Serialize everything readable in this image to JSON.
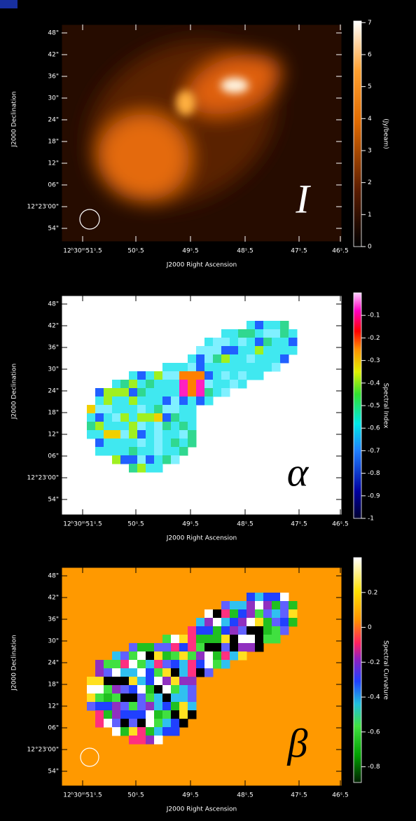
{
  "panels": [
    {
      "symbol": "I",
      "y_label": "J2000 Declination",
      "x_label": "J2000 Right Ascension",
      "x_ticks": [
        "12ʰ30ᵐ51ˢ.5",
        "50ˢ.5",
        "49ˢ.5",
        "48ˢ.5",
        "47ˢ.5",
        "46ˢ.5"
      ],
      "y_ticks": [
        "48\"",
        "42\"",
        "36\"",
        "30\"",
        "24\"",
        "18\"",
        "12\"",
        "06\"",
        "12°23'00\"",
        "54\""
      ],
      "colorbar": {
        "label": "(Jy/beam)",
        "lim": [
          0,
          7.05
        ],
        "ticks": [
          0,
          1,
          2,
          3,
          4,
          5,
          6,
          7
        ]
      }
    },
    {
      "symbol": "α",
      "y_label": "J2000 Declination",
      "x_label": "J2000 Right Ascension",
      "x_ticks": [
        "12ʰ30ᵐ51ˢ.5",
        "50ˢ.5",
        "49ˢ.5",
        "48ˢ.5",
        "47ˢ.5",
        "46ˢ.5"
      ],
      "y_ticks": [
        "48\"",
        "42\"",
        "36\"",
        "30\"",
        "24\"",
        "18\"",
        "12\"",
        "06\"",
        "12°23'00\"",
        "54\""
      ],
      "colorbar": {
        "label": "Spectral Index",
        "lim": [
          -1,
          0
        ],
        "ticks": [
          -1,
          -0.9,
          -0.8,
          -0.7,
          -0.6,
          -0.5,
          -0.4,
          -0.3,
          -0.2,
          -0.1
        ]
      }
    },
    {
      "symbol": "β",
      "y_label": "J2000 Declination",
      "x_label": "J2000 Right Ascension",
      "x_ticks": [
        "12ʰ30ᵐ51ˢ.5",
        "50ˢ.5",
        "49ˢ.5",
        "48ˢ.5",
        "47ˢ.5",
        "46ˢ.5"
      ],
      "y_ticks": [
        "48\"",
        "42\"",
        "36\"",
        "30\"",
        "24\"",
        "18\"",
        "12\"",
        "06\"",
        "12°23'00\"",
        "54\""
      ],
      "colorbar": {
        "label": "Spectral Curvature",
        "lim": [
          -0.89,
          0.4
        ],
        "ticks": [
          -0.8,
          -0.6,
          -0.4,
          -0.2,
          0,
          0.2
        ]
      }
    }
  ]
}
